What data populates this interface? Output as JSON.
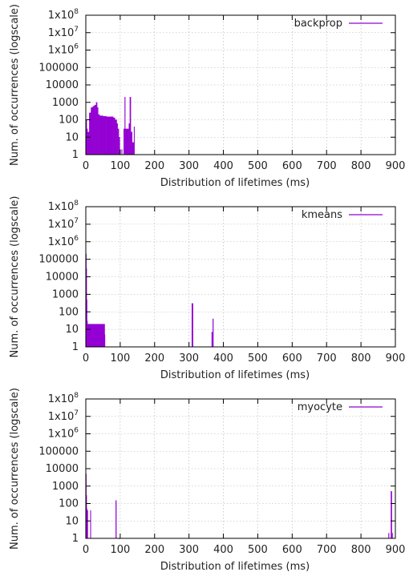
{
  "chart_data": [
    {
      "type": "bar",
      "legend": "backprop",
      "legend_position": "top-right",
      "xlabel": "Distribution of lifetimes (ms)",
      "ylabel": "Num. of occurrences (logscale)",
      "xlim": [
        0,
        900
      ],
      "ylim": [
        1,
        100000000
      ],
      "log_y": true,
      "grid": true,
      "series_color": "#9400D3",
      "xticks": [
        "0",
        "100",
        "200",
        "300",
        "400",
        "500",
        "600",
        "700",
        "800",
        "900"
      ],
      "yticks": [
        {
          "value": 1,
          "base": "1"
        },
        {
          "value": 10,
          "base": "10"
        },
        {
          "value": 100,
          "base": "100"
        },
        {
          "value": 1000,
          "base": "1000"
        },
        {
          "value": 10000,
          "base": "10000"
        },
        {
          "value": 100000,
          "base": "100000"
        },
        {
          "value": 1000000,
          "base": "1x10",
          "exp": "6"
        },
        {
          "value": 10000000,
          "base": "1x10",
          "exp": "7"
        },
        {
          "value": 100000000,
          "base": "1x10",
          "exp": "8"
        }
      ],
      "bars": [
        {
          "x0": 1,
          "x1": 2,
          "y": 100
        },
        {
          "x0": 2,
          "x1": 5,
          "y": 30
        },
        {
          "x0": 5,
          "x1": 10,
          "y": 20
        },
        {
          "x0": 10,
          "x1": 15,
          "y": 250
        },
        {
          "x0": 15,
          "x1": 20,
          "y": 500
        },
        {
          "x0": 20,
          "x1": 25,
          "y": 600
        },
        {
          "x0": 25,
          "x1": 30,
          "y": 700
        },
        {
          "x0": 30,
          "x1": 33,
          "y": 1000
        },
        {
          "x0": 33,
          "x1": 36,
          "y": 500
        },
        {
          "x0": 36,
          "x1": 40,
          "y": 200
        },
        {
          "x0": 40,
          "x1": 50,
          "y": 170
        },
        {
          "x0": 50,
          "x1": 60,
          "y": 160
        },
        {
          "x0": 60,
          "x1": 70,
          "y": 150
        },
        {
          "x0": 70,
          "x1": 80,
          "y": 150
        },
        {
          "x0": 80,
          "x1": 85,
          "y": 130
        },
        {
          "x0": 85,
          "x1": 90,
          "y": 100
        },
        {
          "x0": 90,
          "x1": 93,
          "y": 60
        },
        {
          "x0": 93,
          "x1": 96,
          "y": 30
        },
        {
          "x0": 96,
          "x1": 99,
          "y": 10
        },
        {
          "x0": 99,
          "x1": 101,
          "y": 2
        },
        {
          "x0": 104,
          "x1": 106,
          "y": 2
        },
        {
          "x0": 110,
          "x1": 113,
          "y": 30
        },
        {
          "x0": 113,
          "x1": 115,
          "y": 2000
        },
        {
          "x0": 115,
          "x1": 125,
          "y": 30
        },
        {
          "x0": 125,
          "x1": 128,
          "y": 60
        },
        {
          "x0": 128,
          "x1": 131,
          "y": 2000
        },
        {
          "x0": 131,
          "x1": 135,
          "y": 20
        },
        {
          "x0": 135,
          "x1": 140,
          "y": 5
        },
        {
          "x0": 140,
          "x1": 142,
          "y": 40
        }
      ]
    },
    {
      "type": "bar",
      "legend": "kmeans",
      "legend_position": "top-right",
      "xlabel": "Distribution of lifetimes (ms)",
      "ylabel": "Num. of occurrences (logscale)",
      "xlim": [
        0,
        900
      ],
      "ylim": [
        1,
        100000000
      ],
      "log_y": true,
      "grid": true,
      "series_color": "#9400D3",
      "xticks": [
        "0",
        "100",
        "200",
        "300",
        "400",
        "500",
        "600",
        "700",
        "800",
        "900"
      ],
      "yticks": [
        {
          "value": 1,
          "base": "1"
        },
        {
          "value": 10,
          "base": "10"
        },
        {
          "value": 100,
          "base": "100"
        },
        {
          "value": 1000,
          "base": "1000"
        },
        {
          "value": 10000,
          "base": "10000"
        },
        {
          "value": 100000,
          "base": "100000"
        },
        {
          "value": 1000000,
          "base": "1x10",
          "exp": "6"
        },
        {
          "value": 10000000,
          "base": "1x10",
          "exp": "7"
        },
        {
          "value": 100000000,
          "base": "1x10",
          "exp": "8"
        }
      ],
      "bars": [
        {
          "x0": 0,
          "x1": 1,
          "y": 200000
        },
        {
          "x0": 1,
          "x1": 2,
          "y": 30000
        },
        {
          "x0": 2,
          "x1": 3,
          "y": 500
        },
        {
          "x0": 3,
          "x1": 5,
          "y": 30
        },
        {
          "x0": 5,
          "x1": 55,
          "y": 20
        },
        {
          "x0": 52,
          "x1": 56,
          "y": 5
        },
        {
          "x0": 308,
          "x1": 312,
          "y": 300
        },
        {
          "x0": 366,
          "x1": 369,
          "y": 7
        },
        {
          "x0": 369,
          "x1": 371,
          "y": 40
        }
      ]
    },
    {
      "type": "bar",
      "legend": "myocyte",
      "legend_position": "top-right",
      "xlabel": "Distribution of lifetimes (ms)",
      "ylabel": "Num. of occurrences (logscale)",
      "xlim": [
        0,
        900
      ],
      "ylim": [
        1,
        100000000
      ],
      "log_y": true,
      "grid": true,
      "series_color": "#9400D3",
      "xticks": [
        "0",
        "100",
        "200",
        "300",
        "400",
        "500",
        "600",
        "700",
        "800",
        "900"
      ],
      "yticks": [
        {
          "value": 1,
          "base": "1"
        },
        {
          "value": 10,
          "base": "10"
        },
        {
          "value": 100,
          "base": "100"
        },
        {
          "value": 1000,
          "base": "1000"
        },
        {
          "value": 10000,
          "base": "10000"
        },
        {
          "value": 100000,
          "base": "100000"
        },
        {
          "value": 1000000,
          "base": "1x10",
          "exp": "6"
        },
        {
          "value": 10000000,
          "base": "1x10",
          "exp": "7"
        },
        {
          "value": 100000000,
          "base": "1x10",
          "exp": "8"
        }
      ],
      "bars": [
        {
          "x0": 0,
          "x1": 1,
          "y": 5000
        },
        {
          "x0": 1,
          "x1": 2,
          "y": 300
        },
        {
          "x0": 2,
          "x1": 4,
          "y": 50
        },
        {
          "x0": 4,
          "x1": 6,
          "y": 40
        },
        {
          "x0": 13,
          "x1": 15,
          "y": 40
        },
        {
          "x0": 87,
          "x1": 89,
          "y": 150
        },
        {
          "x0": 96,
          "x1": 97,
          "y": 1
        },
        {
          "x0": 880,
          "x1": 882,
          "y": 2
        },
        {
          "x0": 887,
          "x1": 890,
          "y": 500
        },
        {
          "x0": 890,
          "x1": 892,
          "y": 2
        }
      ]
    }
  ]
}
